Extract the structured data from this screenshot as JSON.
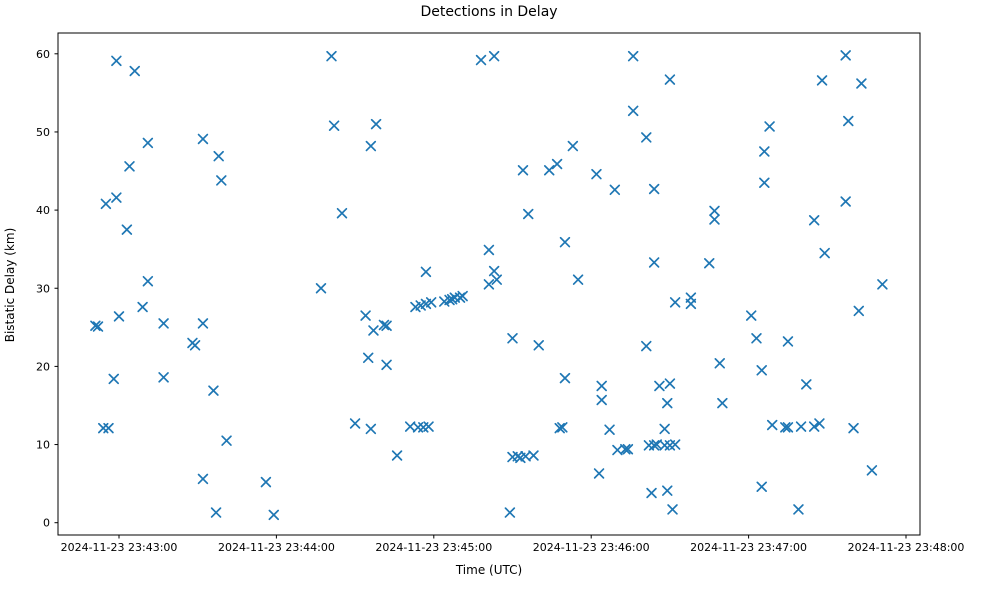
{
  "chart_data": {
    "type": "scatter",
    "title": "Detections in Delay",
    "xlabel": "Time (UTC)",
    "ylabel": "Bistatic Delay (km)",
    "marker": "x",
    "marker_color": "#1f77b4",
    "axes_color": "#000000",
    "background_color": "#ffffff",
    "grid": false,
    "legend": null,
    "date": "2024-11-23",
    "xlim": [
      "23:42:37",
      "23:48:05"
    ],
    "ylim": [
      -1.6,
      62.7
    ],
    "xticks": [
      {
        "time": "23:43:00",
        "label": "2024-11-23 23:43:00"
      },
      {
        "time": "23:44:00",
        "label": "2024-11-23 23:44:00"
      },
      {
        "time": "23:45:00",
        "label": "2024-11-23 23:45:00"
      },
      {
        "time": "23:46:00",
        "label": "2024-11-23 23:46:00"
      },
      {
        "time": "23:47:00",
        "label": "2024-11-23 23:47:00"
      },
      {
        "time": "23:48:00",
        "label": "2024-11-23 23:48:00"
      }
    ],
    "yticks": [
      0,
      10,
      20,
      30,
      40,
      50,
      60
    ],
    "points": [
      {
        "t": "23:42:51",
        "d": 25.2
      },
      {
        "t": "23:42:52",
        "d": 25.1
      },
      {
        "t": "23:42:54",
        "d": 12.1
      },
      {
        "t": "23:42:55",
        "d": 40.8
      },
      {
        "t": "23:42:56",
        "d": 12.1
      },
      {
        "t": "23:42:58",
        "d": 18.4
      },
      {
        "t": "23:42:59",
        "d": 59.1
      },
      {
        "t": "23:42:59",
        "d": 41.6
      },
      {
        "t": "23:43:00",
        "d": 26.4
      },
      {
        "t": "23:43:03",
        "d": 37.5
      },
      {
        "t": "23:43:04",
        "d": 45.6
      },
      {
        "t": "23:43:06",
        "d": 57.8
      },
      {
        "t": "23:43:09",
        "d": 27.6
      },
      {
        "t": "23:43:11",
        "d": 48.6
      },
      {
        "t": "23:43:11",
        "d": 30.9
      },
      {
        "t": "23:43:17",
        "d": 25.5
      },
      {
        "t": "23:43:17",
        "d": 18.6
      },
      {
        "t": "23:43:28",
        "d": 23.0
      },
      {
        "t": "23:43:29",
        "d": 22.7
      },
      {
        "t": "23:43:32",
        "d": 49.1
      },
      {
        "t": "23:43:32",
        "d": 25.5
      },
      {
        "t": "23:43:32",
        "d": 5.6
      },
      {
        "t": "23:43:36",
        "d": 16.9
      },
      {
        "t": "23:43:37",
        "d": 1.3
      },
      {
        "t": "23:43:38",
        "d": 46.9
      },
      {
        "t": "23:43:39",
        "d": 43.8
      },
      {
        "t": "23:43:41",
        "d": 10.5
      },
      {
        "t": "23:43:56",
        "d": 5.2
      },
      {
        "t": "23:43:59",
        "d": 1.0
      },
      {
        "t": "23:44:17",
        "d": 30.0
      },
      {
        "t": "23:44:21",
        "d": 59.7
      },
      {
        "t": "23:44:22",
        "d": 50.8
      },
      {
        "t": "23:44:25",
        "d": 39.6
      },
      {
        "t": "23:44:30",
        "d": 12.7
      },
      {
        "t": "23:44:34",
        "d": 26.5
      },
      {
        "t": "23:44:35",
        "d": 21.1
      },
      {
        "t": "23:44:36",
        "d": 48.2
      },
      {
        "t": "23:44:36",
        "d": 12.0
      },
      {
        "t": "23:44:37",
        "d": 24.6
      },
      {
        "t": "23:44:38",
        "d": 51.0
      },
      {
        "t": "23:44:41",
        "d": 25.3
      },
      {
        "t": "23:44:42",
        "d": 25.2
      },
      {
        "t": "23:44:42",
        "d": 20.2
      },
      {
        "t": "23:44:46",
        "d": 8.6
      },
      {
        "t": "23:44:51",
        "d": 12.3
      },
      {
        "t": "23:44:53",
        "d": 27.6
      },
      {
        "t": "23:44:54",
        "d": 12.2
      },
      {
        "t": "23:44:55",
        "d": 27.8
      },
      {
        "t": "23:44:56",
        "d": 12.2
      },
      {
        "t": "23:44:57",
        "d": 28.0
      },
      {
        "t": "23:44:57",
        "d": 32.1
      },
      {
        "t": "23:44:58",
        "d": 12.3
      },
      {
        "t": "23:44:59",
        "d": 28.2
      },
      {
        "t": "23:45:04",
        "d": 28.3
      },
      {
        "t": "23:45:06",
        "d": 28.5
      },
      {
        "t": "23:45:07",
        "d": 28.6
      },
      {
        "t": "23:45:08",
        "d": 28.8
      },
      {
        "t": "23:45:10",
        "d": 28.8
      },
      {
        "t": "23:45:11",
        "d": 29.0
      },
      {
        "t": "23:45:18",
        "d": 59.2
      },
      {
        "t": "23:45:21",
        "d": 34.9
      },
      {
        "t": "23:45:21",
        "d": 30.5
      },
      {
        "t": "23:45:23",
        "d": 59.7
      },
      {
        "t": "23:45:23",
        "d": 32.2
      },
      {
        "t": "23:45:24",
        "d": 31.1
      },
      {
        "t": "23:45:29",
        "d": 1.3
      },
      {
        "t": "23:45:30",
        "d": 23.6
      },
      {
        "t": "23:45:30",
        "d": 8.4
      },
      {
        "t": "23:45:32",
        "d": 8.5
      },
      {
        "t": "23:45:33",
        "d": 8.3
      },
      {
        "t": "23:45:34",
        "d": 45.1
      },
      {
        "t": "23:45:35",
        "d": 8.5
      },
      {
        "t": "23:45:36",
        "d": 39.5
      },
      {
        "t": "23:45:38",
        "d": 8.6
      },
      {
        "t": "23:45:40",
        "d": 22.7
      },
      {
        "t": "23:45:44",
        "d": 45.1
      },
      {
        "t": "23:45:47",
        "d": 45.9
      },
      {
        "t": "23:45:48",
        "d": 12.1
      },
      {
        "t": "23:45:49",
        "d": 12.2
      },
      {
        "t": "23:45:50",
        "d": 35.9
      },
      {
        "t": "23:45:50",
        "d": 18.5
      },
      {
        "t": "23:45:53",
        "d": 48.2
      },
      {
        "t": "23:45:55",
        "d": 31.1
      },
      {
        "t": "23:46:02",
        "d": 44.6
      },
      {
        "t": "23:46:03",
        "d": 6.3
      },
      {
        "t": "23:46:04",
        "d": 17.5
      },
      {
        "t": "23:46:04",
        "d": 15.7
      },
      {
        "t": "23:46:07",
        "d": 11.9
      },
      {
        "t": "23:46:09",
        "d": 42.6
      },
      {
        "t": "23:46:10",
        "d": 9.3
      },
      {
        "t": "23:46:13",
        "d": 9.4
      },
      {
        "t": "23:46:14",
        "d": 9.4
      },
      {
        "t": "23:46:16",
        "d": 59.7
      },
      {
        "t": "23:46:16",
        "d": 52.7
      },
      {
        "t": "23:46:21",
        "d": 49.3
      },
      {
        "t": "23:46:21",
        "d": 22.6
      },
      {
        "t": "23:46:22",
        "d": 9.9
      },
      {
        "t": "23:46:23",
        "d": 3.8
      },
      {
        "t": "23:46:24",
        "d": 42.7
      },
      {
        "t": "23:46:24",
        "d": 33.3
      },
      {
        "t": "23:46:24",
        "d": 9.9
      },
      {
        "t": "23:46:25",
        "d": 10.0
      },
      {
        "t": "23:46:26",
        "d": 17.5
      },
      {
        "t": "23:46:28",
        "d": 12.0
      },
      {
        "t": "23:46:28",
        "d": 9.9
      },
      {
        "t": "23:46:29",
        "d": 15.3
      },
      {
        "t": "23:46:29",
        "d": 4.1
      },
      {
        "t": "23:46:30",
        "d": 56.7
      },
      {
        "t": "23:46:30",
        "d": 17.8
      },
      {
        "t": "23:46:30",
        "d": 9.9
      },
      {
        "t": "23:46:31",
        "d": 1.7
      },
      {
        "t": "23:46:32",
        "d": 28.2
      },
      {
        "t": "23:46:32",
        "d": 10.0
      },
      {
        "t": "23:46:38",
        "d": 28.8
      },
      {
        "t": "23:46:38",
        "d": 28.0
      },
      {
        "t": "23:46:45",
        "d": 33.2
      },
      {
        "t": "23:46:47",
        "d": 39.9
      },
      {
        "t": "23:46:47",
        "d": 38.8
      },
      {
        "t": "23:46:49",
        "d": 20.4
      },
      {
        "t": "23:46:50",
        "d": 15.3
      },
      {
        "t": "23:47:01",
        "d": 26.5
      },
      {
        "t": "23:47:03",
        "d": 23.6
      },
      {
        "t": "23:47:05",
        "d": 19.5
      },
      {
        "t": "23:47:05",
        "d": 4.6
      },
      {
        "t": "23:47:06",
        "d": 47.5
      },
      {
        "t": "23:47:06",
        "d": 43.5
      },
      {
        "t": "23:47:08",
        "d": 50.7
      },
      {
        "t": "23:47:09",
        "d": 12.5
      },
      {
        "t": "23:47:14",
        "d": 12.2
      },
      {
        "t": "23:47:15",
        "d": 23.2
      },
      {
        "t": "23:47:15",
        "d": 12.2
      },
      {
        "t": "23:47:19",
        "d": 1.7
      },
      {
        "t": "23:47:20",
        "d": 12.3
      },
      {
        "t": "23:47:22",
        "d": 17.7
      },
      {
        "t": "23:47:25",
        "d": 38.7
      },
      {
        "t": "23:47:25",
        "d": 12.3
      },
      {
        "t": "23:47:27",
        "d": 12.7
      },
      {
        "t": "23:47:28",
        "d": 56.6
      },
      {
        "t": "23:47:29",
        "d": 34.5
      },
      {
        "t": "23:47:37",
        "d": 59.8
      },
      {
        "t": "23:47:37",
        "d": 41.1
      },
      {
        "t": "23:47:38",
        "d": 51.4
      },
      {
        "t": "23:47:40",
        "d": 12.1
      },
      {
        "t": "23:47:42",
        "d": 27.1
      },
      {
        "t": "23:47:43",
        "d": 56.2
      },
      {
        "t": "23:47:47",
        "d": 6.7
      },
      {
        "t": "23:47:51",
        "d": 30.5
      }
    ]
  }
}
